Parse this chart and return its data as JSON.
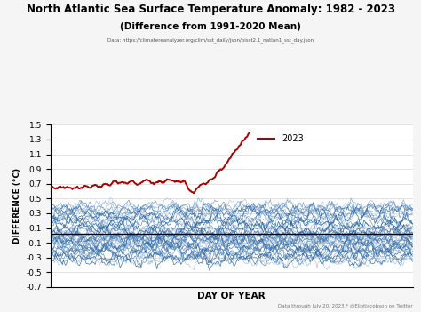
{
  "title": "North Atlantic Sea Surface Temperature Anomaly: 1982 - 2023",
  "subtitle": "(Difference from 1991-2020 Mean)",
  "data_source": "Data: https://climatereanalyzer.org/clim/sst_daily/json/oisst2.1_natlan1_sst_day.json",
  "footnote": "Data through July 20, 2023 * @EliotJacobson on Twitter",
  "xlabel": "DAY OF YEAR",
  "ylabel": "DIFFERENCE (°C)",
  "ylim": [
    -0.7,
    1.5
  ],
  "yticks": [
    -0.7,
    -0.5,
    -0.3,
    -0.1,
    0.1,
    0.3,
    0.5,
    0.7,
    0.9,
    1.1,
    1.3,
    1.5
  ],
  "xlim": [
    1,
    365
  ],
  "background_color": "#f5f5f5",
  "plot_bg_color": "#ffffff",
  "historical_color_light": "#c5d8ee",
  "historical_color_dark": "#1a5a9a",
  "year_2023_color": "#aa0000",
  "hline_color": "#000000",
  "hline_y": 0.02,
  "n_years": 41,
  "days": 365,
  "legend_label": "2023"
}
